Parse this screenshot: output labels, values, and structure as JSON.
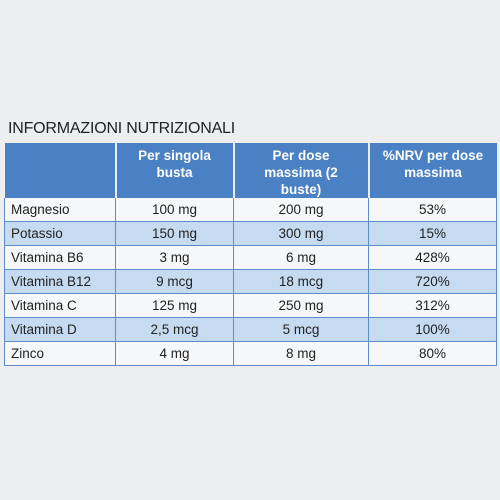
{
  "header": {
    "title": "INFORMAZIONI NUTRIZIONALI"
  },
  "table": {
    "columns": [
      "Per singola busta",
      "Per dose massima (2 buste)",
      "%NRV per dose massima"
    ],
    "rows": [
      [
        "Magnesio",
        "100 mg",
        "200 mg",
        "53%"
      ],
      [
        "Potassio",
        "150 mg",
        "300 mg",
        "15%"
      ],
      [
        "Vitamina B6",
        "3 mg",
        "6 mg",
        "428%"
      ],
      [
        "Vitamina B12",
        "9 mcg",
        "18 mcg",
        "720%"
      ],
      [
        "Vitamina C",
        "125 mg",
        "250 mg",
        "312%"
      ],
      [
        "Vitamina D",
        "2,5 mcg",
        "5 mcg",
        "100%"
      ],
      [
        "Zinco",
        "4 mg",
        "8 mg",
        "80%"
      ]
    ]
  }
}
